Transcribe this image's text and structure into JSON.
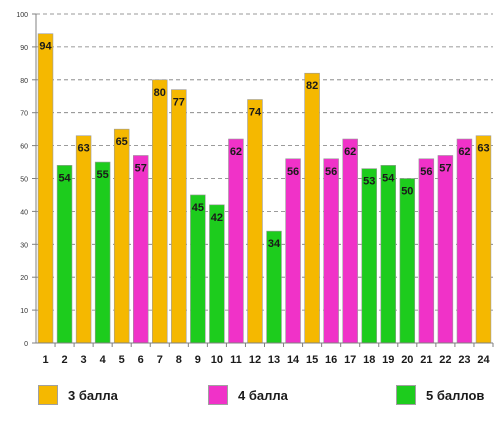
{
  "chart_data": {
    "type": "bar",
    "title": "",
    "xlabel": "",
    "ylabel": "",
    "categories": [
      "1",
      "2",
      "3",
      "4",
      "5",
      "6",
      "7",
      "8",
      "9",
      "10",
      "11",
      "12",
      "13",
      "14",
      "15",
      "16",
      "17",
      "18",
      "19",
      "20",
      "21",
      "22",
      "23",
      "24"
    ],
    "values": [
      94,
      54,
      63,
      55,
      65,
      57,
      80,
      77,
      45,
      42,
      62,
      74,
      34,
      56,
      82,
      56,
      62,
      53,
      54,
      50,
      56,
      57,
      62,
      63
    ],
    "groups": [
      "3",
      "5",
      "3",
      "5",
      "3",
      "4",
      "3",
      "3",
      "5",
      "5",
      "4",
      "3",
      "5",
      "4",
      "3",
      "4",
      "4",
      "5",
      "5",
      "5",
      "4",
      "4",
      "4",
      "3"
    ],
    "ylim": [
      0,
      100
    ],
    "yticks": [
      0,
      10,
      20,
      30,
      40,
      50,
      60,
      70,
      80,
      90,
      100
    ],
    "grid": "horizontal-dashed",
    "data_labels": true,
    "legend": {
      "placement": "bottom",
      "entries": [
        {
          "key": "3",
          "label": "3 балла",
          "color": "#F5B800"
        },
        {
          "key": "4",
          "label": "4 балла",
          "color": "#F032C8"
        },
        {
          "key": "5",
          "label": "5 баллов",
          "color": "#1DCC1D"
        }
      ]
    }
  }
}
